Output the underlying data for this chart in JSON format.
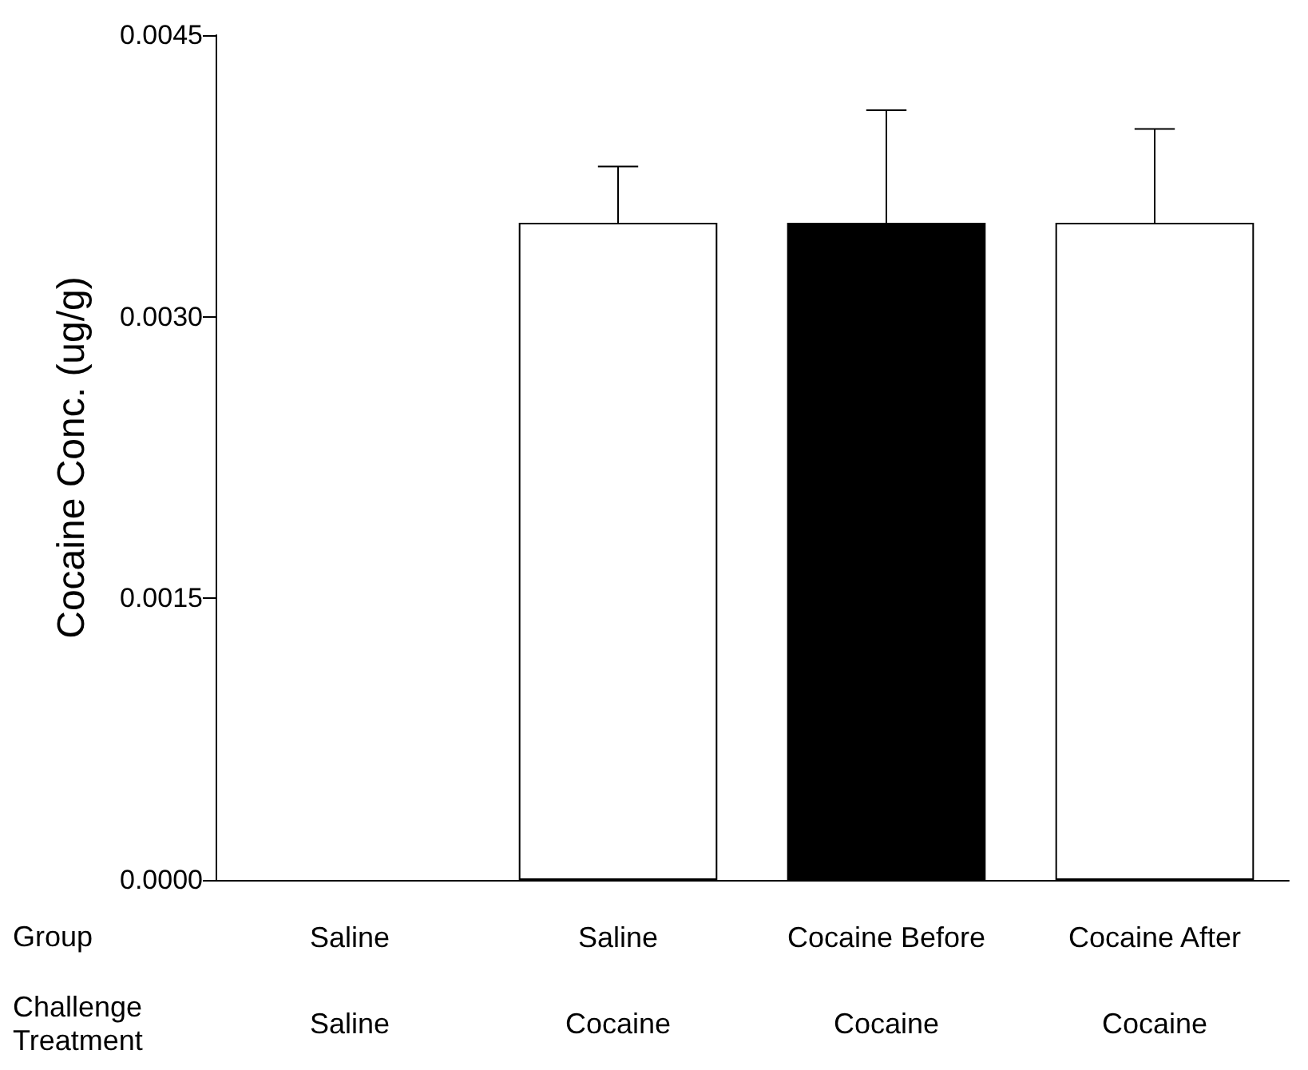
{
  "chart_data": {
    "type": "bar",
    "ylabel": "Cocaine Conc. (ug/g)",
    "categories": [
      "Saline\nSaline",
      "Saline\nCocaine",
      "Cocaine Before\nCocaine",
      "Cocaine After\nCocaine"
    ],
    "values": [
      null,
      0.0035,
      0.0035,
      0.0035
    ],
    "errors": [
      null,
      [
        0.0035,
        0.0038
      ],
      [
        0.0035,
        0.0041
      ],
      [
        0.0035,
        0.004
      ]
    ],
    "colors": [
      "#ffffff",
      "#ffffff",
      "#000000",
      "#ffffff"
    ],
    "ylim": [
      0,
      0.0045
    ],
    "yticks": [
      {
        "value": 0,
        "label": "0.0000"
      },
      {
        "value": 0.0015,
        "label": "0.0015"
      },
      {
        "value": 0.003,
        "label": "0.0030"
      },
      {
        "value": 0.0045,
        "label": "0.0045"
      }
    ],
    "annotations": [
      "Group",
      "Challenge\nTreatment"
    ],
    "grid": false
  }
}
